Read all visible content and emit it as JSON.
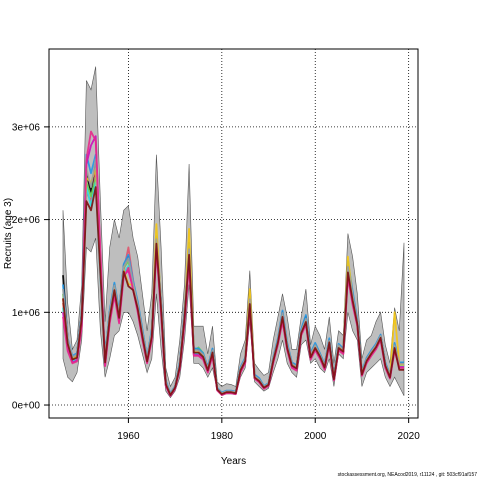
{
  "chart_data": {
    "type": "area",
    "title": "",
    "xlabel": "Years",
    "ylabel": "Recruits (age 3)",
    "xlim": [
      1943,
      2022
    ],
    "ylim": [
      -140000,
      3840000
    ],
    "xticks": [
      1960,
      1980,
      2000,
      2020
    ],
    "xtick_labels": [
      "1960",
      "1980",
      "2000",
      "2020"
    ],
    "yticks": [
      0,
      1000000,
      2000000,
      3000000
    ],
    "ytick_labels": [
      "0e+00",
      "1e+06",
      "2e+06",
      "3e+06"
    ],
    "grid": "dotted",
    "legend": "none",
    "band_color": "#bebebe",
    "band": {
      "x": [
        1946,
        1947,
        1948,
        1949,
        1950,
        1951,
        1952,
        1953,
        1954,
        1955,
        1956,
        1957,
        1958,
        1959,
        1960,
        1961,
        1962,
        1963,
        1964,
        1965,
        1966,
        1967,
        1968,
        1969,
        1970,
        1971,
        1972,
        1973,
        1974,
        1975,
        1976,
        1977,
        1978,
        1979,
        1980,
        1981,
        1982,
        1983,
        1984,
        1985,
        1986,
        1987,
        1988,
        1989,
        1990,
        1991,
        1992,
        1993,
        1994,
        1995,
        1996,
        1997,
        1998,
        1999,
        2000,
        2001,
        2002,
        2003,
        2004,
        2005,
        2006,
        2007,
        2008,
        2009,
        2010,
        2011,
        2012,
        2013,
        2014,
        2015,
        2016,
        2017,
        2018,
        2019
      ],
      "lower": [
        500000,
        300000,
        250000,
        350000,
        700000,
        1700000,
        1650000,
        1800000,
        800000,
        300000,
        500000,
        750000,
        800000,
        1000000,
        1000000,
        900000,
        750000,
        550000,
        350000,
        500000,
        1200000,
        600000,
        150000,
        80000,
        150000,
        300000,
        700000,
        1300000,
        450000,
        450000,
        400000,
        300000,
        400000,
        150000,
        100000,
        120000,
        120000,
        110000,
        300000,
        400000,
        900000,
        250000,
        200000,
        150000,
        180000,
        350000,
        500000,
        700000,
        450000,
        350000,
        300000,
        650000,
        700000,
        450000,
        500000,
        400000,
        350000,
        500000,
        200000,
        550000,
        500000,
        1000000,
        800000,
        700000,
        200000,
        350000,
        400000,
        450000,
        500000,
        300000,
        200000,
        300000,
        200000,
        100000
      ],
      "upper": [
        2100000,
        1100000,
        600000,
        700000,
        1300000,
        3500000,
        3400000,
        3650000,
        2200000,
        900000,
        1700000,
        2000000,
        1800000,
        2100000,
        2150000,
        1800000,
        1600000,
        1200000,
        800000,
        1200000,
        2700000,
        1700000,
        400000,
        200000,
        300000,
        700000,
        1300000,
        2600000,
        850000,
        850000,
        850000,
        550000,
        850000,
        250000,
        200000,
        230000,
        220000,
        200000,
        550000,
        700000,
        1450000,
        450000,
        380000,
        320000,
        350000,
        700000,
        950000,
        1200000,
        950000,
        600000,
        600000,
        950000,
        1250000,
        650000,
        850000,
        750000,
        600000,
        950000,
        450000,
        800000,
        750000,
        1850000,
        1600000,
        1200000,
        500000,
        700000,
        750000,
        900000,
        1000000,
        650000,
        450000,
        1050000,
        800000,
        1750000
      ]
    },
    "series_x": [
      1946,
      1947,
      1948,
      1949,
      1950,
      1951,
      1952,
      1953,
      1954,
      1955,
      1956,
      1957,
      1958,
      1959,
      1960,
      1961,
      1962,
      1963,
      1964,
      1965,
      1966,
      1967,
      1968,
      1969,
      1970,
      1971,
      1972,
      1973,
      1974,
      1975,
      1976,
      1977,
      1978,
      1979,
      1980,
      1981,
      1982,
      1983,
      1984,
      1985,
      1986,
      1987,
      1988,
      1989,
      1990,
      1991,
      1992,
      1993,
      1994,
      1995,
      1996,
      1997,
      1998,
      1999,
      2000,
      2001,
      2002,
      2003,
      2004,
      2005,
      2006,
      2007,
      2008,
      2009,
      2010,
      2011,
      2012,
      2013,
      2014,
      2015,
      2016,
      2017,
      2018,
      2019
    ],
    "series": [
      {
        "color": "#000000",
        "values": [
          1400000,
          700000,
          500000,
          550000,
          1000000,
          2500000,
          2300000,
          2600000,
          1500000,
          500000,
          1000000,
          1300000,
          1000000,
          1500000,
          1600000,
          1300000,
          1100000,
          800000,
          500000,
          800000,
          1800000,
          1100000,
          250000,
          120000,
          200000,
          450000,
          1000000,
          1700000,
          600000,
          600000,
          550000,
          400000,
          600000,
          180000,
          130000,
          150000,
          150000,
          140000,
          400000,
          500000,
          1150000,
          320000,
          280000,
          200000,
          230000,
          500000,
          700000,
          1000000,
          650000,
          450000,
          420000,
          800000,
          950000,
          550000,
          650000,
          550000,
          430000,
          700000,
          300000,
          650000,
          600000,
          1500000,
          1200000,
          900000,
          350000,
          500000,
          580000,
          650000,
          750000,
          450000,
          320000,
          650000,
          450000,
          450000
        ]
      },
      {
        "color": "#df536b",
        "values": [
          1100000,
          650000,
          480000,
          500000,
          900000,
          2300000,
          2200000,
          2500000,
          1400000,
          450000,
          950000,
          1250000,
          950000,
          1450000,
          1700000,
          1350000,
          1050000,
          750000,
          480000,
          750000,
          1750000,
          1050000,
          230000,
          110000,
          190000,
          420000,
          950000,
          1600000,
          560000,
          560000,
          520000,
          380000,
          560000,
          170000,
          120000,
          140000,
          140000,
          130000,
          380000,
          480000,
          1100000,
          300000,
          260000,
          190000,
          220000,
          480000,
          680000,
          950000,
          620000,
          430000,
          400000,
          780000,
          900000,
          520000,
          620000,
          530000,
          410000,
          680000,
          280000,
          620000,
          580000,
          1450000,
          1150000,
          880000,
          330000,
          480000,
          560000,
          630000,
          730000,
          430000,
          300000,
          620000,
          430000,
          430000
        ]
      },
      {
        "color": "#61d04f",
        "values": [
          1200000,
          700000,
          520000,
          540000,
          950000,
          2400000,
          2250000,
          2450000,
          1450000,
          480000,
          980000,
          1280000,
          980000,
          1480000,
          1550000,
          1320000,
          1080000,
          780000,
          490000,
          780000,
          1780000,
          1080000,
          240000,
          115000,
          195000,
          430000,
          980000,
          1650000,
          580000,
          620000,
          560000,
          390000,
          580000,
          175000,
          125000,
          145000,
          145000,
          135000,
          390000,
          490000,
          1120000,
          310000,
          270000,
          195000,
          225000,
          490000,
          690000,
          980000,
          640000,
          440000,
          410000,
          790000,
          920000,
          540000,
          640000,
          540000,
          420000,
          690000,
          290000,
          640000,
          590000,
          1480000,
          1180000,
          890000,
          340000,
          490000,
          570000,
          640000,
          740000,
          440000,
          310000,
          640000,
          440000,
          440000
        ]
      },
      {
        "color": "#2297e6",
        "values": [
          1300000,
          720000,
          530000,
          560000,
          980000,
          2700000,
          2500000,
          2700000,
          1550000,
          520000,
          1020000,
          1320000,
          1020000,
          1520000,
          1620000,
          1340000,
          1120000,
          820000,
          510000,
          820000,
          1820000,
          1120000,
          260000,
          125000,
          205000,
          460000,
          1020000,
          1750000,
          610000,
          610000,
          560000,
          410000,
          610000,
          185000,
          135000,
          155000,
          155000,
          145000,
          410000,
          510000,
          1170000,
          330000,
          290000,
          205000,
          235000,
          510000,
          720000,
          1020000,
          670000,
          460000,
          430000,
          820000,
          970000,
          560000,
          670000,
          560000,
          440000,
          720000,
          310000,
          660000,
          610000,
          1550000,
          1230000,
          920000,
          360000,
          510000,
          590000,
          660000,
          760000,
          460000,
          330000,
          670000,
          460000,
          460000
        ]
      },
      {
        "color": "#28e2e5",
        "values": [
          1050000,
          620000,
          470000,
          490000,
          880000,
          2350000,
          2150000,
          2400000,
          1380000,
          440000,
          920000,
          1220000,
          920000,
          1420000,
          1500000,
          1280000,
          1040000,
          740000,
          470000,
          740000,
          1720000,
          1020000,
          220000,
          105000,
          185000,
          410000,
          930000,
          1580000,
          550000,
          550000,
          510000,
          370000,
          550000,
          165000,
          115000,
          135000,
          135000,
          125000,
          370000,
          470000,
          1080000,
          295000,
          255000,
          185000,
          215000,
          470000,
          670000,
          940000,
          610000,
          420000,
          390000,
          770000,
          890000,
          510000,
          610000,
          520000,
          400000,
          670000,
          275000,
          610000,
          570000,
          1420000,
          1120000,
          870000,
          325000,
          470000,
          550000,
          620000,
          720000,
          420000,
          295000,
          610000,
          420000,
          420000
        ]
      },
      {
        "color": "#cd0bbc",
        "values": [
          1000000,
          600000,
          460000,
          480000,
          860000,
          2600000,
          2800000,
          2900000,
          1600000,
          430000,
          900000,
          1200000,
          900000,
          1400000,
          1450000,
          1260000,
          1020000,
          720000,
          460000,
          720000,
          1700000,
          1000000,
          210000,
          100000,
          180000,
          400000,
          900000,
          1550000,
          540000,
          540000,
          500000,
          360000,
          540000,
          160000,
          110000,
          130000,
          130000,
          120000,
          360000,
          460000,
          1060000,
          290000,
          250000,
          180000,
          210000,
          460000,
          660000,
          920000,
          600000,
          410000,
          380000,
          760000,
          880000,
          500000,
          600000,
          510000,
          390000,
          660000,
          270000,
          600000,
          560000,
          1400000,
          1100000,
          860000,
          320000,
          460000,
          540000,
          610000,
          710000,
          410000,
          290000,
          600000,
          410000,
          410000
        ]
      },
      {
        "color": "#f5c710",
        "values": [
          1150000,
          680000,
          500000,
          520000,
          920000,
          2450000,
          2400000,
          2550000,
          1500000,
          470000,
          960000,
          1260000,
          960000,
          1460000,
          1300000,
          1300000,
          1060000,
          760000,
          480000,
          760000,
          1950000,
          1060000,
          235000,
          112000,
          192000,
          425000,
          960000,
          1900000,
          570000,
          570000,
          530000,
          385000,
          570000,
          172000,
          122000,
          142000,
          142000,
          132000,
          385000,
          485000,
          1250000,
          305000,
          265000,
          192000,
          222000,
          485000,
          685000,
          960000,
          630000,
          435000,
          405000,
          785000,
          910000,
          530000,
          630000,
          535000,
          415000,
          685000,
          285000,
          630000,
          585000,
          1600000,
          1160000,
          885000,
          335000,
          485000,
          565000,
          635000,
          735000,
          435000,
          305000,
          1000000,
          435000,
          435000
        ]
      },
      {
        "color": "#9e9e9e",
        "values": [
          1250000,
          710000,
          515000,
          545000,
          960000,
          2550000,
          2350000,
          2650000,
          1520000,
          490000,
          990000,
          1290000,
          990000,
          1490000,
          1580000,
          1310000,
          1090000,
          790000,
          495000,
          790000,
          1790000,
          1090000,
          245000,
          118000,
          198000,
          440000,
          990000,
          1680000,
          590000,
          590000,
          545000,
          395000,
          590000,
          178000,
          128000,
          148000,
          148000,
          138000,
          395000,
          495000,
          1140000,
          315000,
          275000,
          198000,
          228000,
          495000,
          695000,
          990000,
          645000,
          445000,
          415000,
          795000,
          930000,
          545000,
          645000,
          545000,
          425000,
          695000,
          295000,
          645000,
          595000,
          1490000,
          1190000,
          895000,
          345000,
          495000,
          575000,
          645000,
          745000,
          445000,
          315000,
          645000,
          445000,
          445000
        ]
      },
      {
        "color": "#e7298a",
        "values": [
          950000,
          580000,
          450000,
          470000,
          840000,
          2650000,
          2950000,
          2850000,
          1650000,
          420000,
          880000,
          1180000,
          880000,
          1380000,
          1480000,
          1240000,
          1000000,
          700000,
          450000,
          700000,
          1680000,
          980000,
          205000,
          98000,
          175000,
          390000,
          880000,
          1520000,
          530000,
          530000,
          490000,
          350000,
          530000,
          158000,
          108000,
          128000,
          128000,
          118000,
          350000,
          450000,
          1040000,
          285000,
          245000,
          175000,
          205000,
          450000,
          650000,
          900000,
          590000,
          400000,
          370000,
          750000,
          870000,
          490000,
          590000,
          500000,
          380000,
          650000,
          265000,
          590000,
          550000,
          1380000,
          1080000,
          850000,
          315000,
          450000,
          530000,
          600000,
          700000,
          400000,
          285000,
          590000,
          400000,
          400000
        ]
      },
      {
        "color": "#7a0f0f",
        "values": [
          1150000,
          660000,
          490000,
          510000,
          930000,
          2200000,
          2100000,
          2350000,
          1420000,
          460000,
          940000,
          1240000,
          940000,
          1440000,
          1280000,
          1240000,
          1040000,
          740000,
          470000,
          740000,
          1740000,
          1040000,
          225000,
          108000,
          188000,
          415000,
          940000,
          1620000,
          565000,
          565000,
          520000,
          375000,
          565000,
          168000,
          118000,
          138000,
          138000,
          128000,
          375000,
          475000,
          1090000,
          298000,
          258000,
          188000,
          218000,
          475000,
          675000,
          950000,
          615000,
          425000,
          395000,
          775000,
          895000,
          515000,
          615000,
          525000,
          405000,
          675000,
          278000,
          615000,
          575000,
          1430000,
          1130000,
          875000,
          328000,
          475000,
          555000,
          625000,
          725000,
          425000,
          298000,
          615000,
          380000,
          380000
        ]
      }
    ]
  },
  "footer": {
    "text": "stockassessment.org, NEAcod2019, r11124 , git: 503cf91af157"
  }
}
